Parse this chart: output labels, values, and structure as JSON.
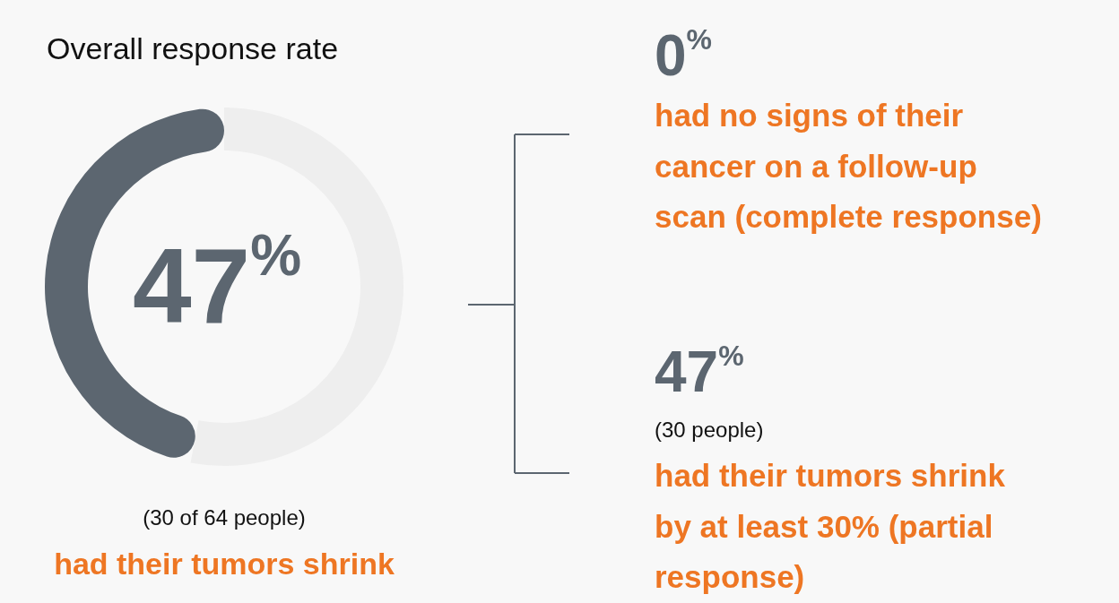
{
  "chart_data": {
    "type": "donut",
    "title": "Overall response rate",
    "categories": [
      null,
      null
    ],
    "values": [
      47,
      53
    ],
    "colors": [
      "#5c6670",
      "#eeeeee"
    ],
    "value_labels": [
      "47$^{%}$",
      null
    ],
    "annotations": [
      "(30 of 64 people)",
      "had their tumors shrink",
      "0$^{%}$",
      "had no signs of their cancer on a follow-up scan (complete response)",
      "47$^{%}$",
      "(30 people)",
      "had their tumors shrink by at least 30% (partial response)"
    ]
  }
}
